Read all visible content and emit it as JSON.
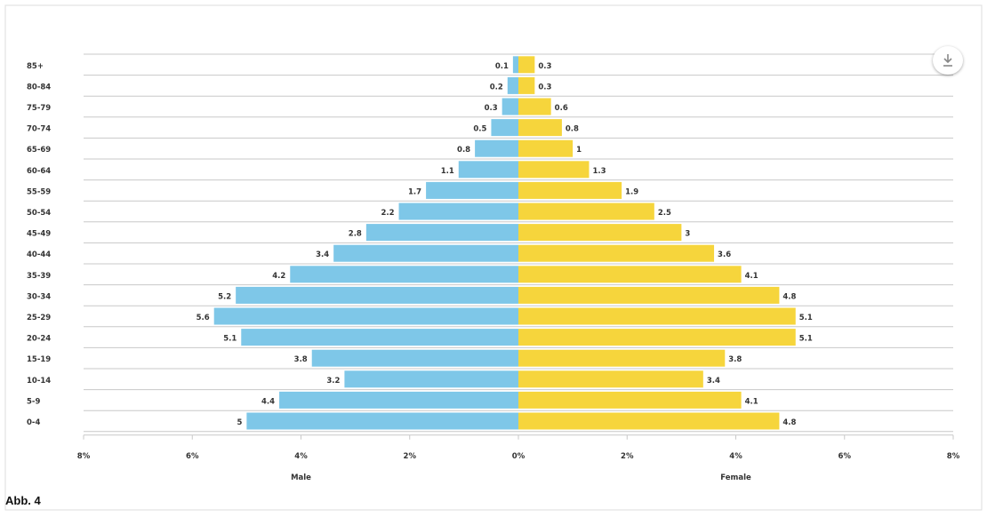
{
  "caption": "Abb. 4",
  "download_icon": "download-icon",
  "colors": {
    "male": "#7ec7e8",
    "female": "#f6d53c",
    "grid": "#c8c8c8",
    "text": "#333333"
  },
  "chart_data": {
    "type": "bar",
    "orientation": "horizontal-diverging",
    "categories": [
      "85+",
      "80-84",
      "75-79",
      "70-74",
      "65-69",
      "60-64",
      "55-59",
      "50-54",
      "45-49",
      "40-44",
      "35-39",
      "30-34",
      "25-29",
      "20-24",
      "15-19",
      "10-14",
      "5-9",
      "0-4"
    ],
    "series": [
      {
        "name": "Male",
        "values": [
          0.1,
          0.2,
          0.3,
          0.5,
          0.8,
          1.1,
          1.7,
          2.2,
          2.8,
          3.4,
          4.2,
          5.2,
          5.6,
          5.1,
          3.8,
          3.2,
          4.4,
          5
        ]
      },
      {
        "name": "Female",
        "values": [
          0.3,
          0.3,
          0.6,
          0.8,
          1,
          1.3,
          1.9,
          2.5,
          3,
          3.6,
          4.1,
          4.8,
          5.1,
          5.1,
          3.8,
          3.4,
          4.1,
          4.8
        ]
      }
    ],
    "xlim": [
      -8,
      8
    ],
    "x_ticks": [
      -8,
      -6,
      -4,
      -2,
      0,
      2,
      4,
      6,
      8
    ],
    "x_tick_labels": [
      "8%",
      "6%",
      "4%",
      "2%",
      "0%",
      "2%",
      "4%",
      "6%",
      "8%"
    ],
    "xlabel_left": "Male",
    "xlabel_right": "Female",
    "grid": true
  }
}
